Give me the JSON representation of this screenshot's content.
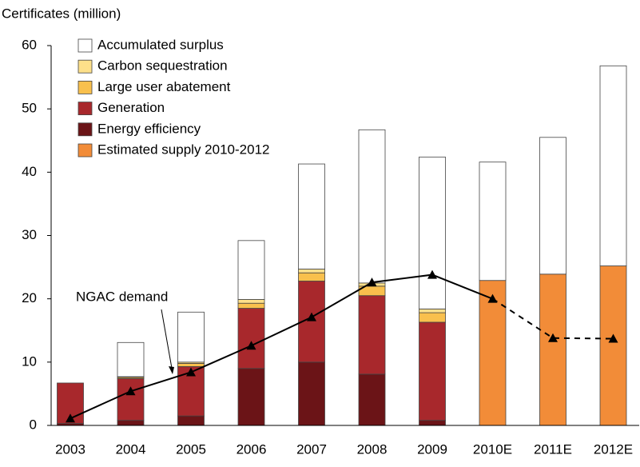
{
  "chart_data": {
    "type": "bar",
    "y_label": "Certificates (million)",
    "categories": [
      "2003",
      "2004",
      "2005",
      "2006",
      "2007",
      "2008",
      "2009",
      "2010E",
      "2011E",
      "2012E"
    ],
    "series": [
      {
        "name": "Accumulated surplus",
        "color": "#ffffff",
        "values": [
          null,
          5.4,
          7.9,
          9.3,
          16.6,
          24.2,
          24.0,
          18.7,
          21.6,
          31.6
        ]
      },
      {
        "name": "Carbon sequestration",
        "color": "#fde08a",
        "values": [
          null,
          0.1,
          0.2,
          0.6,
          0.6,
          0.5,
          0.6,
          null,
          null,
          null
        ]
      },
      {
        "name": "Large user abatement",
        "color": "#f9c04d",
        "values": [
          null,
          0.2,
          0.5,
          0.8,
          1.3,
          1.5,
          1.5,
          null,
          null,
          null
        ]
      },
      {
        "name": "Generation",
        "color": "#a8282c",
        "values": [
          6.4,
          6.6,
          7.8,
          9.5,
          12.8,
          12.4,
          15.5,
          null,
          null,
          null
        ]
      },
      {
        "name": "Energy efficiency",
        "color": "#6b1417",
        "values": [
          0.3,
          0.8,
          1.5,
          9.0,
          10.0,
          8.1,
          0.8,
          null,
          null,
          null
        ]
      },
      {
        "name": "Estimated supply 2010-2012",
        "color": "#f28c38",
        "values": [
          null,
          null,
          null,
          null,
          null,
          null,
          null,
          22.9,
          23.9,
          25.2
        ]
      }
    ],
    "demand": {
      "values": [
        1.1,
        5.4,
        8.4,
        12.6,
        17.1,
        22.6,
        23.8,
        20.0,
        13.8,
        13.7
      ],
      "color": "#000000",
      "dashed_from": "2010E"
    },
    "annotation": "NGAC demand",
    "ylim": [
      0,
      60
    ],
    "yticks": [
      0,
      10,
      20,
      30,
      40,
      50,
      60
    ]
  }
}
